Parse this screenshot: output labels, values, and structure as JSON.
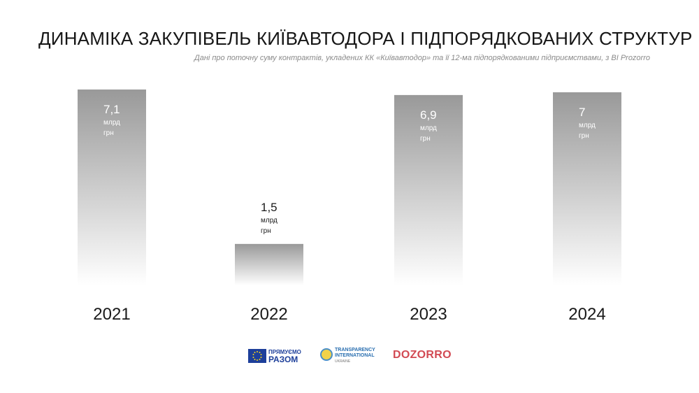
{
  "title": "ДИНАМІКА ЗАКУПІВЕЛЬ КИЇВАВТОДОРА І ПІДПОРЯДКОВАНИХ СТРУКТУР",
  "subtitle": "Дані про поточну суму контрактів, укладених КК «Київавтодор» та її 12-ма підпорядкованими підприємствами, з BI Prozorro",
  "chart_data": {
    "type": "bar",
    "categories": [
      "2021",
      "2022",
      "2023",
      "2024"
    ],
    "values": [
      7.1,
      1.5,
      6.9,
      7
    ],
    "value_labels": [
      "7,1",
      "1,5",
      "6,9",
      "7"
    ],
    "unit_line1": "млрд",
    "unit_line2": "грн",
    "ylim": [
      0,
      7.1
    ],
    "grid": false,
    "bar_color_top": "#9a9a9a",
    "bar_color_bottom": "#ffffff"
  },
  "logos": {
    "eu_line1": "ПРЯМУЄМО",
    "eu_line2": "РАЗОМ",
    "ti_line1": "TRANSPARENCY",
    "ti_line2": "INTERNATIONAL",
    "ti_line3": "UKRAINE",
    "dozorro": "DOZORRO"
  }
}
